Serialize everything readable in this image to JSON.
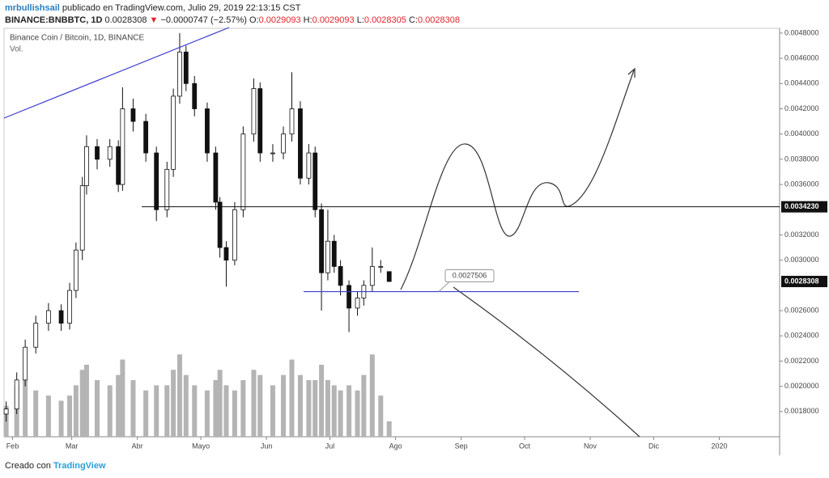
{
  "header": {
    "author": "mrbullishsail",
    "published": "publicado en TradingView.com, Julio 29, 2019 22:13:15 CST",
    "symbol": "BINANCE:BNBBTC, 1D",
    "price": "0.0028308",
    "arrow": "▼",
    "change": "−0.0000747 (−2.57%)",
    "ohlc": [
      {
        "key": "O:",
        "value": "0.0029093"
      },
      {
        "key": "H:",
        "value": "0.0029093"
      },
      {
        "key": "L:",
        "value": "0.0028305"
      },
      {
        "key": "C:",
        "value": "0.0028308"
      }
    ]
  },
  "chart_data": {
    "type": "candlestick",
    "legend": "Binance Coin / Bitcoin, 1D, BINANCE",
    "volume_label": "Vol.",
    "x": [
      -3,
      2,
      6,
      11,
      17,
      23,
      27,
      30,
      33,
      35,
      40,
      46,
      50,
      52,
      57,
      63,
      68,
      73,
      76,
      79,
      82,
      86,
      92,
      96,
      98,
      101,
      105,
      109,
      114,
      117,
      123,
      128,
      132,
      136,
      140,
      143,
      146,
      149,
      152,
      155,
      159,
      163,
      166,
      170,
      174,
      178
    ],
    "open": [
      0.00178,
      0.00182,
      0.00205,
      0.00231,
      0.0025,
      0.0026,
      0.0025,
      0.00276,
      0.00308,
      0.00359,
      0.0039,
      0.0038,
      0.0039,
      0.0036,
      0.0042,
      0.0041,
      0.00385,
      0.0034,
      0.00372,
      0.0043,
      0.00465,
      0.0044,
      0.0042,
      0.00385,
      0.00346,
      0.0031,
      0.003,
      0.0034,
      0.004,
      0.00436,
      0.00385,
      0.00385,
      0.004,
      0.0042,
      0.00365,
      0.00385,
      0.0034,
      0.0029,
      0.00315,
      0.00295,
      0.0028,
      0.00262,
      0.0027,
      0.0028,
      0.00295,
      0.0029093
    ],
    "high": [
      0.00188,
      0.00211,
      0.00237,
      0.00256,
      0.00266,
      0.00265,
      0.00282,
      0.00314,
      0.00366,
      0.00399,
      0.00396,
      0.00396,
      0.00395,
      0.00437,
      0.00428,
      0.00416,
      0.0039,
      0.00378,
      0.00436,
      0.0048,
      0.0047,
      0.00446,
      0.00425,
      0.0039,
      0.0035,
      0.00315,
      0.00346,
      0.00406,
      0.00444,
      0.00441,
      0.00392,
      0.00406,
      0.00449,
      0.00426,
      0.00392,
      0.0039,
      0.00345,
      0.0034,
      0.0032,
      0.003,
      0.00284,
      0.00275,
      0.00284,
      0.0031,
      0.003,
      0.0029093
    ],
    "low": [
      0.00172,
      0.00178,
      0.002,
      0.00226,
      0.00244,
      0.00244,
      0.00245,
      0.0027,
      0.003,
      0.00352,
      0.00372,
      0.00374,
      0.00354,
      0.00355,
      0.00402,
      0.00378,
      0.00331,
      0.00334,
      0.00366,
      0.00424,
      0.00434,
      0.00414,
      0.00378,
      0.0034,
      0.00302,
      0.00279,
      0.00296,
      0.00334,
      0.00394,
      0.00378,
      0.00378,
      0.0038,
      0.00394,
      0.0036,
      0.0036,
      0.00334,
      0.0026,
      0.00284,
      0.0029,
      0.00272,
      0.00243,
      0.00256,
      0.00264,
      0.00275,
      0.0029,
      0.0028305
    ],
    "close": [
      0.00182,
      0.00205,
      0.00231,
      0.0025,
      0.0026,
      0.0025,
      0.00276,
      0.00308,
      0.00359,
      0.0039,
      0.0038,
      0.0039,
      0.0036,
      0.0042,
      0.0041,
      0.00385,
      0.0034,
      0.00372,
      0.0043,
      0.00465,
      0.0044,
      0.0042,
      0.00385,
      0.00346,
      0.0031,
      0.003,
      0.0034,
      0.004,
      0.00436,
      0.00385,
      0.00385,
      0.004,
      0.0042,
      0.00365,
      0.00385,
      0.0034,
      0.0029,
      0.00315,
      0.00295,
      0.0028,
      0.00262,
      0.0027,
      0.0028,
      0.00295,
      0.00295,
      0.0028308
    ],
    "volume": [
      30,
      50,
      55,
      45,
      40,
      35,
      40,
      50,
      65,
      70,
      55,
      50,
      60,
      75,
      55,
      45,
      50,
      50,
      65,
      80,
      60,
      50,
      45,
      55,
      65,
      50,
      45,
      55,
      65,
      60,
      50,
      60,
      75,
      60,
      55,
      55,
      70,
      55,
      50,
      45,
      50,
      45,
      60,
      80,
      40,
      15
    ],
    "volume_lim": [
      0,
      110
    ],
    "up_color": "#ffffff",
    "down_color": "#111111",
    "volume_color": "#b4b4b4",
    "xlim": [
      -4,
      362.5
    ],
    "xticks": [
      {
        "value": 0,
        "label": "Feb"
      },
      {
        "value": 28,
        "label": "Mar"
      },
      {
        "value": 59,
        "label": "Abr"
      },
      {
        "value": 89,
        "label": "Mayo"
      },
      {
        "value": 120,
        "label": "Jun"
      },
      {
        "value": 150,
        "label": "Jul"
      },
      {
        "value": 181,
        "label": "Ago"
      },
      {
        "value": 212,
        "label": "Sep"
      },
      {
        "value": 242,
        "label": "Oct"
      },
      {
        "value": 273,
        "label": "Nov"
      },
      {
        "value": 303,
        "label": "Dic"
      },
      {
        "value": 334,
        "label": "2020"
      }
    ],
    "ylim": [
      0.0016,
      0.004838
    ],
    "yticks": [
      {
        "value": 0.0018,
        "label": "0.0018000"
      },
      {
        "value": 0.002,
        "label": "0.0020000"
      },
      {
        "value": 0.0022,
        "label": "0.0022000"
      },
      {
        "value": 0.0024,
        "label": "0.0024000"
      },
      {
        "value": 0.0026,
        "label": "0.0026000"
      },
      {
        "value": 0.003,
        "label": "0.0030000"
      },
      {
        "value": 0.0032,
        "label": "0.0032000"
      },
      {
        "value": 0.0036,
        "label": "0.0036000"
      },
      {
        "value": 0.0038,
        "label": "0.0038000"
      },
      {
        "value": 0.004,
        "label": "0.0040000"
      },
      {
        "value": 0.0042,
        "label": "0.0042000"
      },
      {
        "value": 0.0044,
        "label": "0.0044000"
      },
      {
        "value": 0.0046,
        "label": "0.0046000"
      },
      {
        "value": 0.0048,
        "label": "0.0048000"
      }
    ],
    "levels": [
      {
        "value": 0.003423,
        "label": "0.0034230",
        "color": "#111111"
      },
      {
        "value": 0.0027506,
        "label": "0.0027506",
        "color": "#3c3cd0"
      }
    ],
    "last_price": {
      "value": 0.0028308,
      "label": "0.0028308"
    }
  },
  "footer": {
    "text": "Creado con",
    "brand": "TradingView"
  }
}
